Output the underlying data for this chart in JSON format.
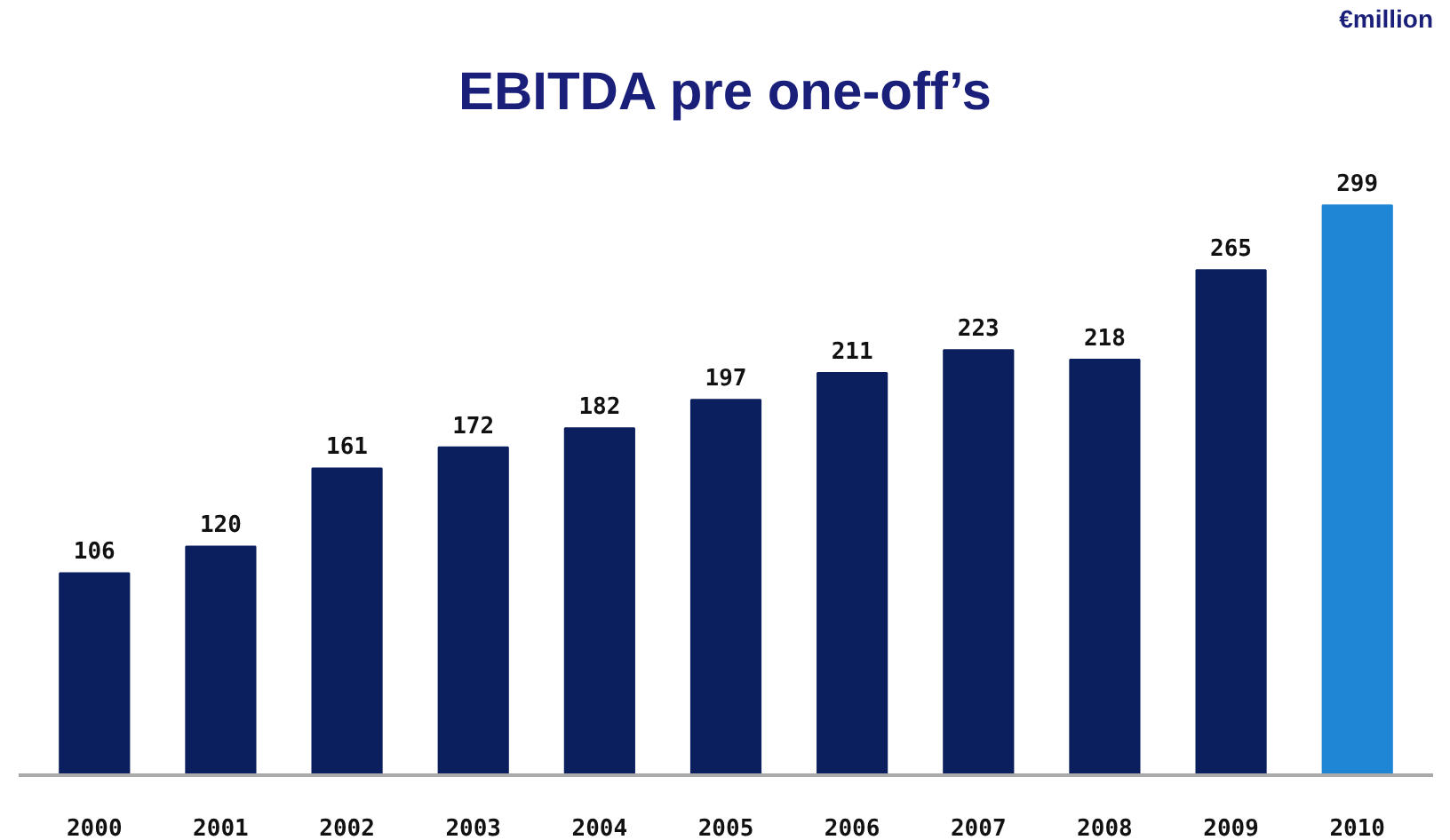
{
  "chart_data": {
    "type": "bar",
    "title": "EBITDA pre one-off’s",
    "annotations": [
      "€million"
    ],
    "categories": [
      "2000",
      "2001",
      "2002",
      "2003",
      "2004",
      "2005",
      "2006",
      "2007",
      "2008",
      "2009",
      "2010"
    ],
    "values": [
      106,
      120,
      161,
      172,
      182,
      197,
      211,
      223,
      218,
      265,
      299
    ],
    "colors": [
      "#0b1f5e",
      "#0b1f5e",
      "#0b1f5e",
      "#0b1f5e",
      "#0b1f5e",
      "#0b1f5e",
      "#0b1f5e",
      "#0b1f5e",
      "#0b1f5e",
      "#0b1f5e",
      "#1f86d6"
    ],
    "data_labels": true,
    "grid": false
  }
}
